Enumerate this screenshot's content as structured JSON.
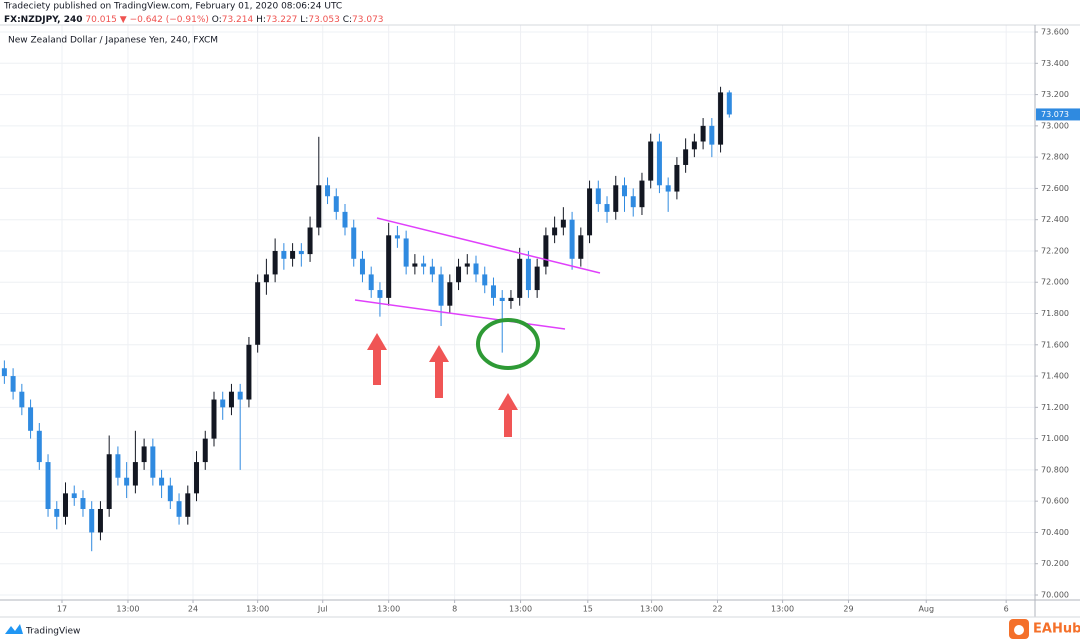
{
  "header": {
    "publisher": "Tradeciety published on TradingView.com, February 01, 2020 08:06:24 UTC",
    "symbol": "FX:NZDJPY, 240",
    "last": "70.015",
    "change": "▼ −0.642 (−0.91%)",
    "open_label": "O:",
    "high_label": "H:",
    "low_label": "L:",
    "close_label": "C:"
  },
  "footer": {
    "logo": "TradingView",
    "watermark": "EAHub"
  },
  "chart_data": {
    "type": "candlestick",
    "title": "New Zealand Dollar / Japanese Yen, 240, FXCM",
    "up_color": "#131722",
    "down_color": "#2f8ae0",
    "grid": true,
    "x": [
      1,
      3,
      5,
      7,
      9,
      11,
      13,
      15,
      17,
      19,
      21,
      23,
      25,
      27,
      29,
      31,
      33,
      35,
      37,
      39,
      41,
      43,
      45,
      47,
      49,
      51,
      53,
      55,
      57,
      59,
      61,
      63,
      65,
      67,
      69,
      71,
      73,
      75,
      77,
      79,
      81,
      83,
      85,
      87,
      89,
      91,
      93,
      95,
      97,
      99,
      101,
      103,
      105,
      107,
      109,
      111,
      113,
      115,
      117,
      119,
      121,
      123,
      125,
      127,
      129,
      131,
      133,
      135,
      137,
      139,
      141,
      143,
      145,
      147,
      149,
      151,
      153,
      155,
      157,
      159,
      161,
      163,
      165,
      167
    ],
    "open": [
      71.45,
      71.4,
      71.3,
      71.2,
      71.05,
      70.85,
      70.55,
      70.5,
      70.65,
      70.62,
      70.55,
      70.4,
      70.55,
      70.9,
      70.75,
      70.7,
      70.85,
      70.95,
      70.75,
      70.7,
      70.6,
      70.5,
      70.65,
      70.85,
      71.0,
      71.25,
      71.2,
      71.3,
      71.25,
      71.6,
      72.0,
      72.05,
      72.2,
      72.15,
      72.2,
      72.18,
      72.35,
      72.62,
      72.55,
      72.45,
      72.35,
      72.15,
      72.05,
      71.95,
      71.9,
      72.3,
      72.28,
      72.1,
      72.12,
      72.1,
      72.05,
      71.85,
      72.0,
      72.1,
      72.12,
      72.05,
      71.98,
      71.9,
      71.88,
      71.9,
      72.15,
      71.95,
      72.1,
      72.3,
      72.35,
      72.4,
      72.15,
      72.3,
      72.6,
      72.5,
      72.45,
      72.62,
      72.55,
      72.48,
      72.65,
      72.9,
      72.62,
      72.58,
      72.75,
      72.85,
      72.9,
      73.0,
      72.88,
      73.214
    ],
    "high": [
      71.5,
      71.45,
      71.35,
      71.25,
      71.1,
      70.9,
      70.6,
      70.72,
      70.7,
      70.67,
      70.6,
      70.6,
      71.02,
      70.95,
      70.85,
      71.05,
      71.0,
      71.0,
      70.8,
      70.75,
      70.65,
      70.7,
      70.92,
      71.05,
      71.3,
      71.3,
      71.35,
      71.35,
      71.65,
      72.05,
      72.15,
      72.28,
      72.25,
      72.25,
      72.25,
      72.42,
      72.93,
      72.67,
      72.6,
      72.5,
      72.4,
      72.2,
      72.1,
      72.0,
      72.38,
      72.36,
      72.33,
      72.18,
      72.17,
      72.15,
      72.1,
      72.05,
      72.15,
      72.18,
      72.17,
      72.1,
      72.03,
      71.95,
      71.95,
      72.22,
      72.2,
      72.15,
      72.35,
      72.42,
      72.48,
      72.45,
      72.35,
      72.65,
      72.65,
      72.55,
      72.68,
      72.67,
      72.6,
      72.7,
      72.95,
      72.95,
      72.67,
      72.8,
      72.92,
      72.95,
      73.05,
      73.05,
      73.25,
      73.227
    ],
    "low": [
      71.35,
      71.25,
      71.15,
      71.0,
      70.8,
      70.5,
      70.42,
      70.45,
      70.57,
      70.5,
      70.28,
      70.35,
      70.5,
      70.7,
      70.62,
      70.65,
      70.8,
      70.7,
      70.62,
      70.55,
      70.45,
      70.45,
      70.6,
      70.8,
      70.95,
      71.12,
      71.15,
      70.8,
      71.2,
      71.55,
      71.92,
      72.0,
      72.08,
      72.1,
      72.1,
      72.13,
      72.3,
      72.5,
      72.4,
      72.3,
      72.1,
      72.0,
      71.9,
      71.78,
      71.85,
      72.22,
      72.05,
      72.05,
      72.05,
      72.0,
      71.72,
      71.8,
      71.95,
      72.05,
      72.0,
      71.93,
      71.85,
      71.55,
      71.83,
      71.85,
      71.9,
      71.9,
      72.05,
      72.25,
      72.3,
      72.08,
      72.1,
      72.25,
      72.45,
      72.38,
      72.4,
      72.45,
      72.42,
      72.43,
      72.6,
      72.57,
      72.45,
      72.53,
      72.7,
      72.8,
      72.85,
      72.8,
      72.83,
      73.053
    ],
    "close": [
      71.4,
      71.3,
      71.2,
      71.05,
      70.85,
      70.55,
      70.5,
      70.65,
      70.62,
      70.55,
      70.4,
      70.55,
      70.9,
      70.75,
      70.7,
      70.85,
      70.95,
      70.75,
      70.7,
      70.6,
      70.5,
      70.65,
      70.85,
      71.0,
      71.25,
      71.2,
      71.3,
      71.25,
      71.6,
      72.0,
      72.05,
      72.2,
      72.15,
      72.2,
      72.18,
      72.35,
      72.62,
      72.55,
      72.45,
      72.35,
      72.15,
      72.05,
      71.95,
      71.9,
      72.3,
      72.28,
      72.1,
      72.12,
      72.1,
      72.05,
      71.85,
      72.0,
      72.1,
      72.12,
      72.05,
      71.98,
      71.9,
      71.88,
      71.9,
      72.15,
      71.95,
      72.1,
      72.3,
      72.35,
      72.4,
      72.15,
      72.3,
      72.6,
      72.5,
      72.45,
      72.62,
      72.55,
      72.48,
      72.65,
      72.9,
      72.62,
      72.58,
      72.75,
      72.85,
      72.9,
      73.0,
      72.88,
      73.214,
      73.073
    ],
    "xlim": [
      0,
      237
    ],
    "xticks": [
      {
        "value": 14.2,
        "label": "17"
      },
      {
        "value": 29.3,
        "label": "13:00"
      },
      {
        "value": 44.2,
        "label": "24"
      },
      {
        "value": 59,
        "label": "13:00"
      },
      {
        "value": 73.9,
        "label": "Jul"
      },
      {
        "value": 89,
        "label": "13:00"
      },
      {
        "value": 104.1,
        "label": "8"
      },
      {
        "value": 119.2,
        "label": "13:00"
      },
      {
        "value": 134.6,
        "label": "15"
      },
      {
        "value": 149.2,
        "label": "13:00"
      },
      {
        "value": 164.3,
        "label": "22"
      },
      {
        "value": 179.2,
        "label": "13:00"
      },
      {
        "value": 194.3,
        "label": "29"
      },
      {
        "value": 212.1,
        "label": "Aug"
      },
      {
        "value": 230.4,
        "label": "6"
      }
    ],
    "ylim": [
      69.968,
      73.645
    ],
    "yticks": [
      {
        "value": 70.0,
        "label": "70.000"
      },
      {
        "value": 70.2,
        "label": "70.200"
      },
      {
        "value": 70.4,
        "label": "70.400"
      },
      {
        "value": 70.6,
        "label": "70.600"
      },
      {
        "value": 70.8,
        "label": "70.800"
      },
      {
        "value": 71.0,
        "label": "71.000"
      },
      {
        "value": 71.2,
        "label": "71.200"
      },
      {
        "value": 71.4,
        "label": "71.400"
      },
      {
        "value": 71.6,
        "label": "71.600"
      },
      {
        "value": 71.8,
        "label": "71.800"
      },
      {
        "value": 72.0,
        "label": "72.000"
      },
      {
        "value": 72.2,
        "label": "72.200"
      },
      {
        "value": 72.4,
        "label": "72.400"
      },
      {
        "value": 72.6,
        "label": "72.600"
      },
      {
        "value": 72.8,
        "label": "72.800"
      },
      {
        "value": 73.0,
        "label": "73.000"
      },
      {
        "value": 73.2,
        "label": "73.200"
      },
      {
        "value": 73.4,
        "label": "73.400"
      },
      {
        "value": 73.6,
        "label": "73.600"
      }
    ]
  }
}
